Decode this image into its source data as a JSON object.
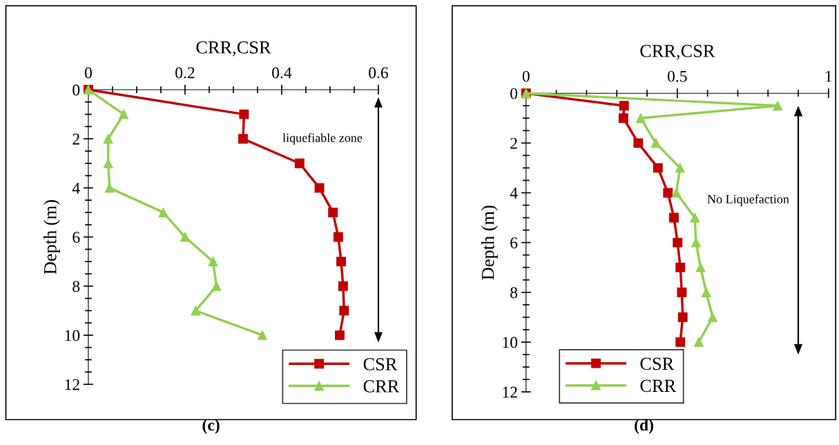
{
  "chart_data": [
    {
      "type": "line",
      "xlabel": "CRR,CSR",
      "ylabel": "Depth (m)",
      "title": "(c)",
      "xlim": [
        0,
        0.6
      ],
      "xticks": [
        0,
        0.2,
        0.4,
        0.6
      ],
      "ylim": [
        12,
        0
      ],
      "yticks": [
        0,
        2,
        4,
        6,
        8,
        10,
        12
      ],
      "legend": "bottom right",
      "grid": false,
      "line_style": "solid",
      "annotations": [
        "liquefiable zone"
      ],
      "series": [
        {
          "name": "CSR",
          "color": "#c00000",
          "marker": "square",
          "x": [
            0,
            0.322,
            0.32,
            0.437,
            0.478,
            0.506,
            0.517,
            0.523,
            0.527,
            0.529,
            0.52
          ],
          "values": [
            0,
            1,
            2,
            3,
            4,
            5,
            6,
            7,
            8,
            9,
            10
          ]
        },
        {
          "name": "CRR",
          "color": "#92d050",
          "marker": "triangle",
          "x": [
            0,
            0.073,
            0.041,
            0.041,
            0.044,
            0.155,
            0.2,
            0.258,
            0.265,
            0.222,
            0.36
          ],
          "values": [
            0,
            1,
            2,
            3,
            4,
            5,
            6,
            7,
            8,
            9,
            10
          ]
        }
      ]
    },
    {
      "type": "line",
      "xlabel": "CRR,CSR",
      "ylabel": "Depth (m)",
      "title": "(d)",
      "xlim": [
        0,
        1
      ],
      "xticks": [
        0,
        0.5,
        1
      ],
      "ylim": [
        12,
        0
      ],
      "yticks": [
        0,
        2,
        4,
        6,
        8,
        10,
        12
      ],
      "legend": "bottom left",
      "grid": false,
      "line_style": "solid",
      "annotations": [
        "No Liquefaction"
      ],
      "series": [
        {
          "name": "CSR",
          "color": "#c00000",
          "marker": "square",
          "x": [
            0,
            0.324,
            0.322,
            0.371,
            0.436,
            0.469,
            0.489,
            0.501,
            0.51,
            0.515,
            0.518,
            0.51
          ],
          "values": [
            0,
            0.5,
            1,
            2,
            3,
            4,
            5,
            6,
            7,
            8,
            9,
            10
          ]
        },
        {
          "name": "CRR",
          "color": "#92d050",
          "marker": "triangle",
          "x": [
            0,
            0.832,
            0.379,
            0.429,
            0.509,
            0.497,
            0.558,
            0.562,
            0.577,
            0.596,
            0.617,
            0.571
          ],
          "values": [
            0,
            0.5,
            1,
            2,
            3,
            4,
            5,
            6,
            7,
            8,
            9,
            10
          ]
        }
      ]
    }
  ]
}
